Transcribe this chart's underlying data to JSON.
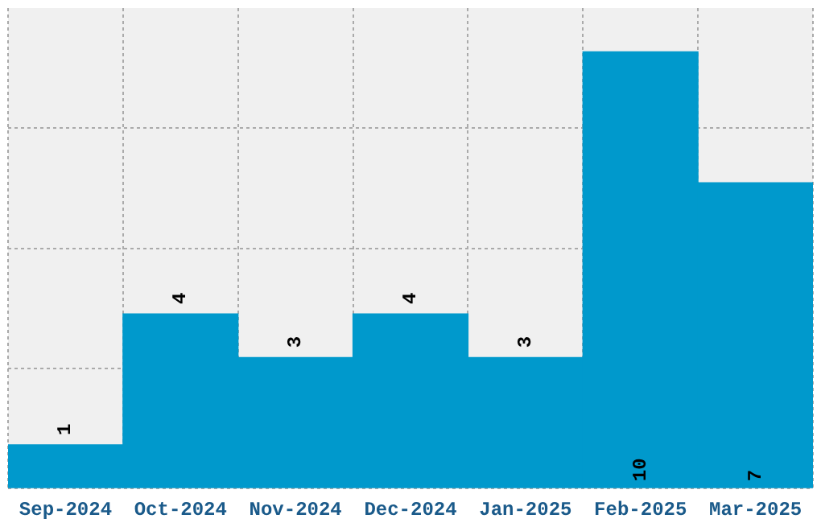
{
  "chart_data": {
    "type": "bar",
    "categories": [
      "Sep-2024",
      "Oct-2024",
      "Nov-2024",
      "Dec-2024",
      "Jan-2025",
      "Feb-2025",
      "Mar-2025"
    ],
    "values": [
      1,
      4,
      3,
      4,
      3,
      10,
      7
    ],
    "color": "#0099cc",
    "ylim": [
      0,
      11
    ],
    "yticks": [
      {
        "value": 0,
        "label": null
      },
      {
        "value": 2.75,
        "label": null
      },
      {
        "value": 5.5,
        "label": null
      },
      {
        "value": 8.25,
        "label": null
      }
    ],
    "grid": true,
    "tick_labels": "x",
    "data_labels": true
  }
}
